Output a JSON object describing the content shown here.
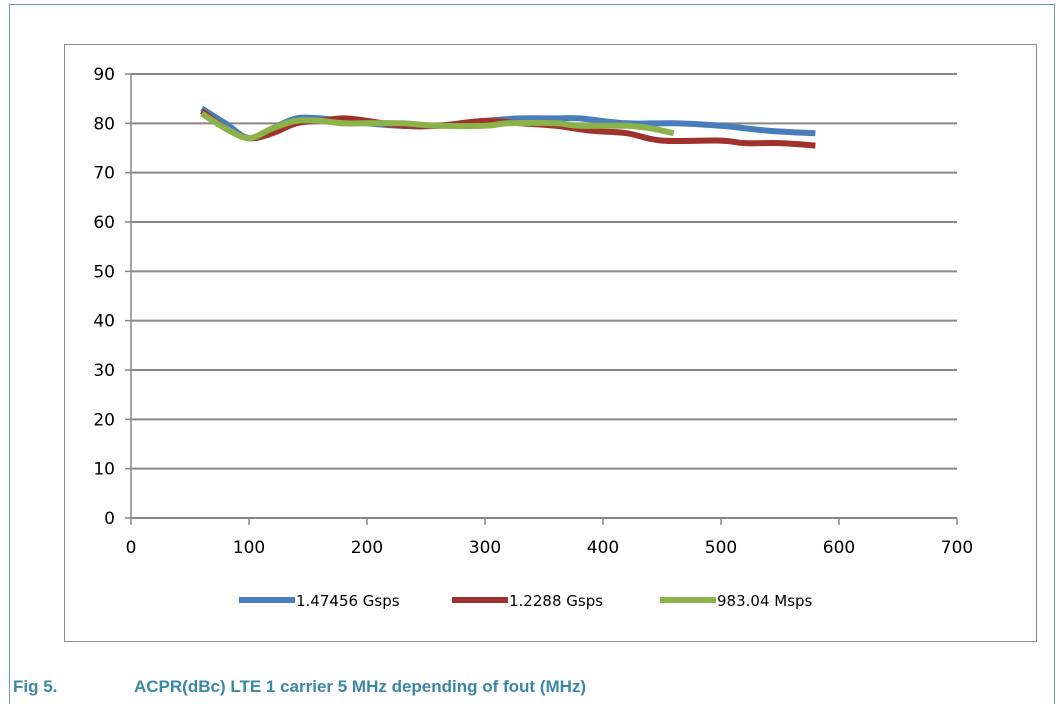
{
  "caption": {
    "number": "Fig 5.",
    "text": "ACPR(dBc) LTE 1 carrier 5 MHz depending of fout (MHz)"
  },
  "colors": {
    "frame": "#6a9cae",
    "caption": "#3b87a7",
    "grid": "#878787"
  },
  "chart_data": {
    "type": "line",
    "title": "",
    "xlabel": "",
    "ylabel": "",
    "xlim": [
      0,
      700
    ],
    "ylim": [
      0,
      90
    ],
    "xticks": [
      0,
      100,
      200,
      300,
      400,
      500,
      600,
      700
    ],
    "yticks": [
      0,
      10,
      20,
      30,
      40,
      50,
      60,
      70,
      80,
      90
    ],
    "grid": "horizontal",
    "legend_position": "bottom",
    "series": [
      {
        "name": "1.47456 Gsps",
        "color": "#4a7ebb",
        "x": [
          60,
          80,
          100,
          120,
          140,
          160,
          180,
          200,
          230,
          260,
          300,
          330,
          360,
          380,
          420,
          460,
          500,
          540,
          580
        ],
        "y": [
          83,
          80,
          77,
          79,
          81,
          81,
          80.5,
          80,
          79.5,
          79.5,
          80.5,
          81,
          81,
          81,
          80,
          80,
          79.5,
          78.5,
          78
        ]
      },
      {
        "name": "1.2288 Gsps",
        "color": "#a0322e",
        "x": [
          60,
          80,
          100,
          120,
          140,
          160,
          180,
          200,
          230,
          260,
          300,
          330,
          360,
          390,
          420,
          450,
          500,
          520,
          550,
          580
        ],
        "y": [
          82.5,
          79,
          77,
          78,
          80,
          80.5,
          81,
          80.5,
          79.5,
          79.5,
          80.5,
          80,
          79.5,
          78.5,
          78,
          76.5,
          76.5,
          76,
          76,
          75.5
        ]
      },
      {
        "name": "983.04 Msps",
        "color": "#8bb34a",
        "x": [
          60,
          80,
          100,
          120,
          140,
          160,
          180,
          200,
          230,
          260,
          300,
          320,
          360,
          380,
          420,
          440,
          460
        ],
        "y": [
          82,
          79,
          77,
          79,
          80.5,
          80.5,
          80,
          80,
          80,
          79.5,
          79.5,
          80,
          80,
          79.5,
          79.5,
          79,
          78
        ]
      }
    ]
  }
}
